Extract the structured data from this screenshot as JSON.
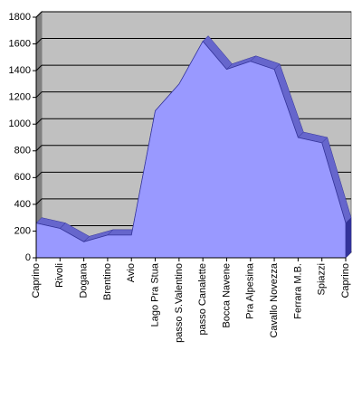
{
  "chart_data": {
    "type": "area",
    "categories": [
      "Caprino",
      "Rivoli",
      "Dogana",
      "Brentino",
      "Avio",
      "Lago Pra Stua",
      "passo S.Valentino",
      "passo Canalette",
      "Bocca Navene",
      "Pra Alpesina",
      "Cavallo Novezza",
      "Ferrara M.B.",
      "Spiazzi",
      "Caprino"
    ],
    "values": [
      260,
      220,
      120,
      170,
      170,
      1100,
      1300,
      1620,
      1410,
      1470,
      1410,
      900,
      860,
      260
    ],
    "color": "#9999ff",
    "ylim": [
      0,
      1800
    ],
    "yticks": [
      0,
      200,
      400,
      600,
      800,
      1000,
      1200,
      1400,
      1600,
      1800
    ],
    "grid": true
  }
}
